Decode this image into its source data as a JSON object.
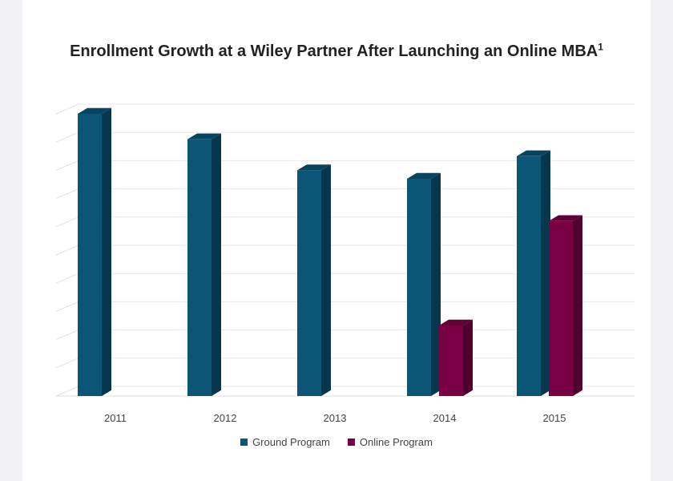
{
  "chart_data": {
    "type": "bar",
    "title": "Enrollment Growth at a Wiley Partner After Launching an Online MBA",
    "title_superscript": "1",
    "categories": [
      "2011",
      "2012",
      "2013",
      "2014",
      "2015"
    ],
    "series": [
      {
        "name": "Ground Program",
        "color": "#0b5577",
        "values": [
          100,
          91,
          80,
          77,
          85
        ]
      },
      {
        "name": "Online Program",
        "color": "#7a0044",
        "values": [
          null,
          null,
          null,
          25,
          62
        ]
      }
    ],
    "ylim": [
      0,
      100
    ],
    "grid": true,
    "legend": "bottom",
    "three_d": true
  }
}
